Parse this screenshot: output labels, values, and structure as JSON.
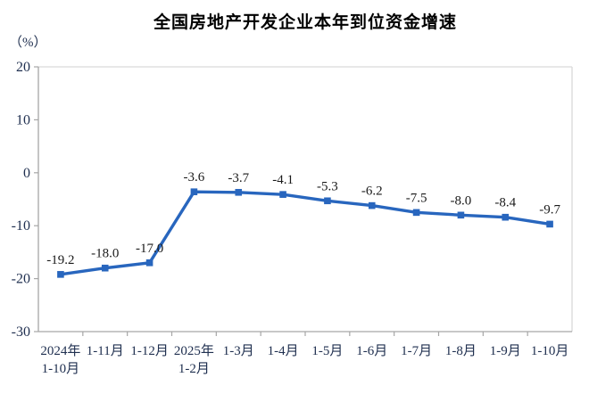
{
  "title": "全国房地产开发企业本年到位资金增速",
  "unit_label": "（%）",
  "colors": {
    "line": "#2866BE",
    "axis": "#A6A6A6",
    "plot_border": "#D9D9D9",
    "tick_text": "#203050",
    "data_label_text": "#1A1A1A"
  },
  "chart_data": {
    "type": "line",
    "title": "全国房地产开发企业本年到位资金增速",
    "ylabel": "（%）",
    "categories": [
      [
        "2024年",
        "1-10月"
      ],
      [
        "1-11月"
      ],
      [
        "1-12月"
      ],
      [
        "2025年",
        "1-2月"
      ],
      [
        "1-3月"
      ],
      [
        "1-4月"
      ],
      [
        "1-5月"
      ],
      [
        "1-6月"
      ],
      [
        "1-7月"
      ],
      [
        "1-8月"
      ],
      [
        "1-9月"
      ],
      [
        "1-10月"
      ]
    ],
    "values": [
      -19.2,
      -18.0,
      -17.0,
      -3.6,
      -3.7,
      -4.1,
      -5.3,
      -6.2,
      -7.5,
      -8.0,
      -8.4,
      -9.7
    ],
    "data_labels": [
      "-19.2",
      "-18.0",
      "-17.0",
      "-3.6",
      "-3.7",
      "-4.1",
      "-5.3",
      "-6.2",
      "-7.5",
      "-8.0",
      "-8.4",
      "-9.7"
    ],
    "ylim": [
      -30,
      20
    ],
    "yticks": [
      20,
      10,
      0,
      -10,
      -20,
      -30
    ],
    "grid": false,
    "legend": "none",
    "marker": "square"
  }
}
